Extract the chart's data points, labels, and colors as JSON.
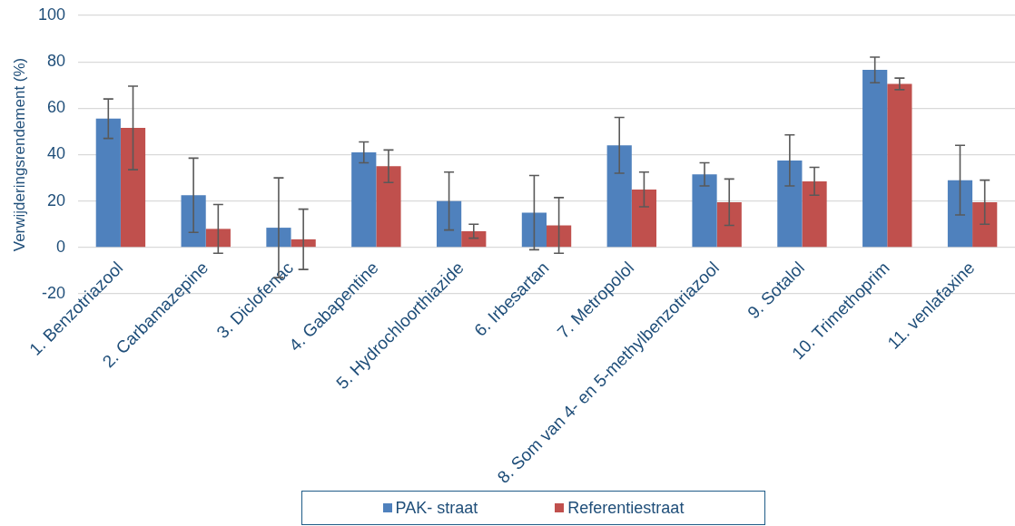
{
  "chart_data": {
    "type": "bar",
    "ylabel": "Verwijderingsrendement (%)",
    "categories": [
      "1. Benzotriazool",
      "2. Carbamazepine",
      "3. Diclofenac",
      "4. Gabapentine",
      "5. Hydrochloorthiazide",
      "6. Irbesartan",
      "7. Metropolol",
      "8. Som van 4- en 5-methylbenzotriazool",
      "9. Sotalol",
      "10. Trimethoprim",
      "11. venlafaxine"
    ],
    "series": [
      {
        "name": "PAK- straat",
        "color": "#4f81bd",
        "values": [
          55.5,
          22.5,
          8.5,
          41,
          20,
          15,
          44,
          31.5,
          37.5,
          76.5,
          29
        ],
        "errors": [
          8.5,
          16,
          21.5,
          4.5,
          12.5,
          16,
          12,
          5,
          11,
          5.5,
          15
        ]
      },
      {
        "name": "Referentiestraat",
        "color": "#c0504d",
        "values": [
          51.5,
          8,
          3.5,
          35,
          7,
          9.5,
          25,
          19.5,
          28.5,
          70.5,
          19.5
        ],
        "errors": [
          18,
          10.5,
          13,
          7,
          3,
          12,
          7.5,
          10,
          6,
          2.5,
          9.5
        ]
      }
    ],
    "ylim": [
      -20,
      100
    ],
    "yticks": [
      -20,
      0,
      20,
      40,
      60,
      80,
      100
    ],
    "grid": "y",
    "legend": "bottom"
  }
}
